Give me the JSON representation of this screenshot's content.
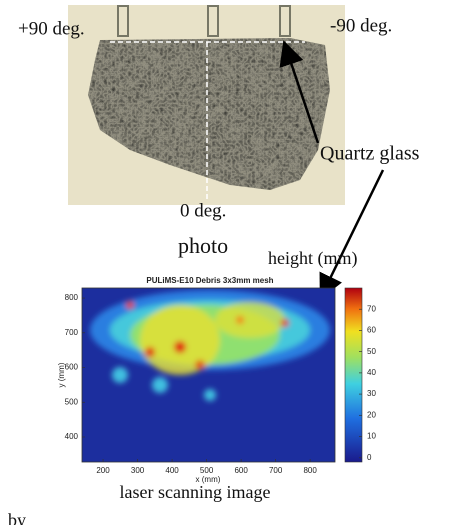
{
  "photo": {
    "left_label": "+90 deg.",
    "right_label": "-90 deg.",
    "bottom_label": "0 deg.",
    "caption": "photo"
  },
  "annotation": "Quartz glass",
  "heatmap": {
    "title": "PULiMS-E10 Debris 3x3mm mesh",
    "xlabel": "x (mm)",
    "ylabel": "y (mm)",
    "xlim": [
      139,
      872
    ],
    "ylim": [
      328,
      829
    ],
    "xticks": [
      200,
      300,
      400,
      500,
      600,
      700,
      800
    ],
    "yticks": [
      400,
      500,
      600,
      700,
      800
    ],
    "colorbar": {
      "label": "height (mm)",
      "lim": [
        -2,
        80
      ],
      "ticks": [
        0,
        10,
        20,
        30,
        40,
        50,
        60,
        70
      ]
    },
    "caption": "laser scanning image"
  },
  "footer": "by"
}
